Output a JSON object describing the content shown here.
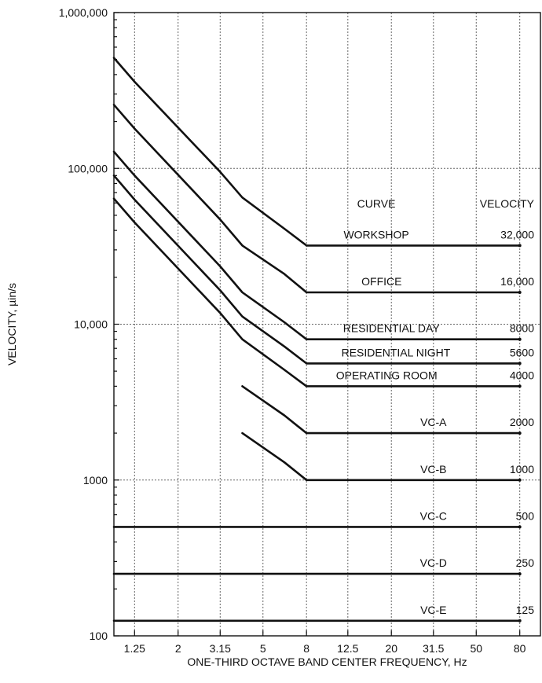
{
  "chart_data": {
    "type": "line",
    "xlabel": "ONE-THIRD OCTAVE BAND CENTER FREQUENCY, Hz",
    "ylabel": "VELOCITY, µin/s",
    "x_scale": "log",
    "y_scale": "log",
    "xlim": [
      1,
      100
    ],
    "ylim": [
      100,
      1000000
    ],
    "x_ticks": [
      {
        "value": 1.25,
        "label": "1.25"
      },
      {
        "value": 2,
        "label": "2"
      },
      {
        "value": 3.15,
        "label": "3.15"
      },
      {
        "value": 5,
        "label": "5"
      },
      {
        "value": 8,
        "label": "8"
      },
      {
        "value": 12.5,
        "label": "12.5"
      },
      {
        "value": 20,
        "label": "20"
      },
      {
        "value": 31.5,
        "label": "31.5"
      },
      {
        "value": 50,
        "label": "50"
      },
      {
        "value": 80,
        "label": "80"
      }
    ],
    "y_ticks": [
      {
        "value": 100,
        "label": "100"
      },
      {
        "value": 1000,
        "label": "1000"
      },
      {
        "value": 10000,
        "label": "10,000"
      },
      {
        "value": 100000,
        "label": "100,000"
      },
      {
        "value": 1000000,
        "label": "1,000,000"
      }
    ],
    "grid": true,
    "header": {
      "curve": "CURVE",
      "velocity": "VELOCITY"
    },
    "series": [
      {
        "name": "WORKSHOP",
        "velocity_label": "32,000",
        "x": [
          1,
          1.25,
          3.15,
          4,
          6.3,
          8,
          80
        ],
        "y": [
          512000,
          360000,
          95000,
          65000,
          41000,
          32000,
          32000
        ]
      },
      {
        "name": "OFFICE",
        "velocity_label": "16,000",
        "x": [
          1,
          1.25,
          3.15,
          4,
          6.3,
          8,
          80
        ],
        "y": [
          256000,
          180000,
          47000,
          32000,
          21000,
          16000,
          16000
        ]
      },
      {
        "name": "RESIDENTIAL DAY",
        "velocity_label": "8000",
        "x": [
          1,
          1.25,
          3.15,
          4,
          6.3,
          8,
          80
        ],
        "y": [
          128000,
          90000,
          23500,
          16000,
          10300,
          8000,
          8000
        ]
      },
      {
        "name": "RESIDENTIAL NIGHT",
        "velocity_label": "5600",
        "x": [
          1,
          1.25,
          3.15,
          4,
          6.3,
          8,
          80
        ],
        "y": [
          90000,
          63000,
          16500,
          11200,
          7200,
          5600,
          5600
        ]
      },
      {
        "name": "OPERATING ROOM",
        "velocity_label": "4000",
        "x": [
          1,
          1.25,
          3.15,
          4,
          6.3,
          8,
          80
        ],
        "y": [
          64000,
          45000,
          11800,
          8000,
          5100,
          4000,
          4000
        ]
      },
      {
        "name": "VC-A",
        "velocity_label": "2000",
        "x": [
          4,
          6.3,
          8,
          80
        ],
        "y": [
          4000,
          2600,
          2000,
          2000
        ]
      },
      {
        "name": "VC-B",
        "velocity_label": "1000",
        "x": [
          4,
          6.3,
          8,
          80
        ],
        "y": [
          2000,
          1300,
          1000,
          1000
        ]
      },
      {
        "name": "VC-C",
        "velocity_label": "500",
        "x": [
          1,
          80
        ],
        "y": [
          500,
          500
        ]
      },
      {
        "name": "VC-D",
        "velocity_label": "250",
        "x": [
          1,
          80
        ],
        "y": [
          250,
          250
        ]
      },
      {
        "name": "VC-E",
        "velocity_label": "125",
        "x": [
          1,
          80
        ],
        "y": [
          125,
          125
        ]
      }
    ]
  }
}
